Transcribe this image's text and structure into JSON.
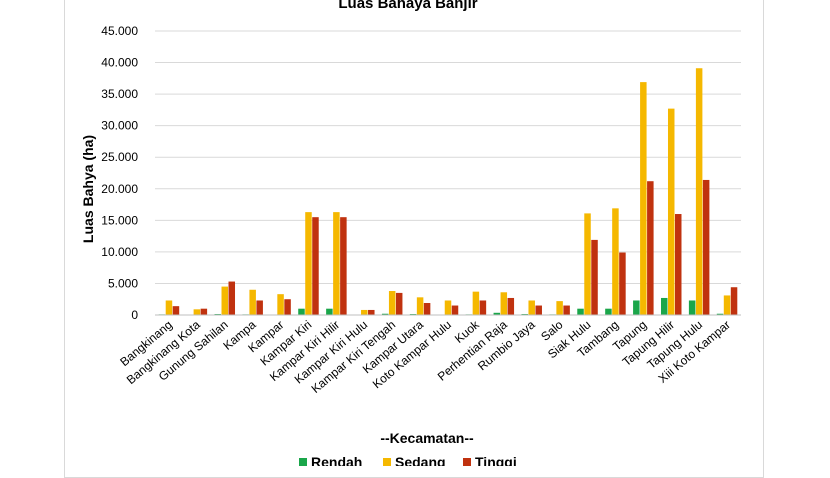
{
  "chart_data": {
    "type": "bar",
    "title": "Luas Bahaya Banjir",
    "xlabel": "--Kecamatan--",
    "ylabel": "Luas Bahya (ha)",
    "ylim": [
      0,
      45000
    ],
    "yticks": [
      "0",
      "5.000",
      "10.000",
      "15.000",
      "20.000",
      "25.000",
      "30.000",
      "35.000",
      "40.000",
      "45.000"
    ],
    "ytick_values": [
      0,
      5000,
      10000,
      15000,
      20000,
      25000,
      30000,
      35000,
      40000,
      45000
    ],
    "grid": true,
    "legend_position": "bottom",
    "categories": [
      "Bangkinang",
      "Bangkinang Kota",
      "Gunung Sahilan",
      "Kampa",
      "Kampar",
      "Kampar Kiri",
      "Kampar Kiri Hilir",
      "Kampar Kiri Hulu",
      "Kampar Kiri Tengah",
      "Kampar Utara",
      "Koto Kampar Hulu",
      "Kuok",
      "Perhentian Raja",
      "Rumbio Jaya",
      "Salo",
      "Siak Hulu",
      "Tambang",
      "Tapung",
      "Tapung Hilir",
      "Tapung Hulu",
      "Xiii Koto Kampar"
    ],
    "series": [
      {
        "name": "Rendah",
        "color": "#1aa64a",
        "values": [
          100,
          50,
          150,
          100,
          80,
          1000,
          1000,
          50,
          200,
          150,
          50,
          100,
          350,
          150,
          100,
          1000,
          1000,
          2300,
          2700,
          2300,
          200
        ]
      },
      {
        "name": "Sedang",
        "color": "#f5b800",
        "values": [
          2300,
          900,
          4500,
          4000,
          3300,
          16300,
          16300,
          800,
          3800,
          2800,
          2300,
          3700,
          3600,
          2300,
          2200,
          16100,
          16900,
          36900,
          32700,
          39100,
          3100
        ]
      },
      {
        "name": "Tinggi",
        "color": "#c0320f",
        "values": [
          1400,
          1000,
          5300,
          2300,
          2500,
          15500,
          15500,
          800,
          3500,
          1900,
          1500,
          2300,
          2700,
          1500,
          1500,
          11900,
          9900,
          21200,
          16000,
          21400,
          4400
        ]
      }
    ]
  }
}
